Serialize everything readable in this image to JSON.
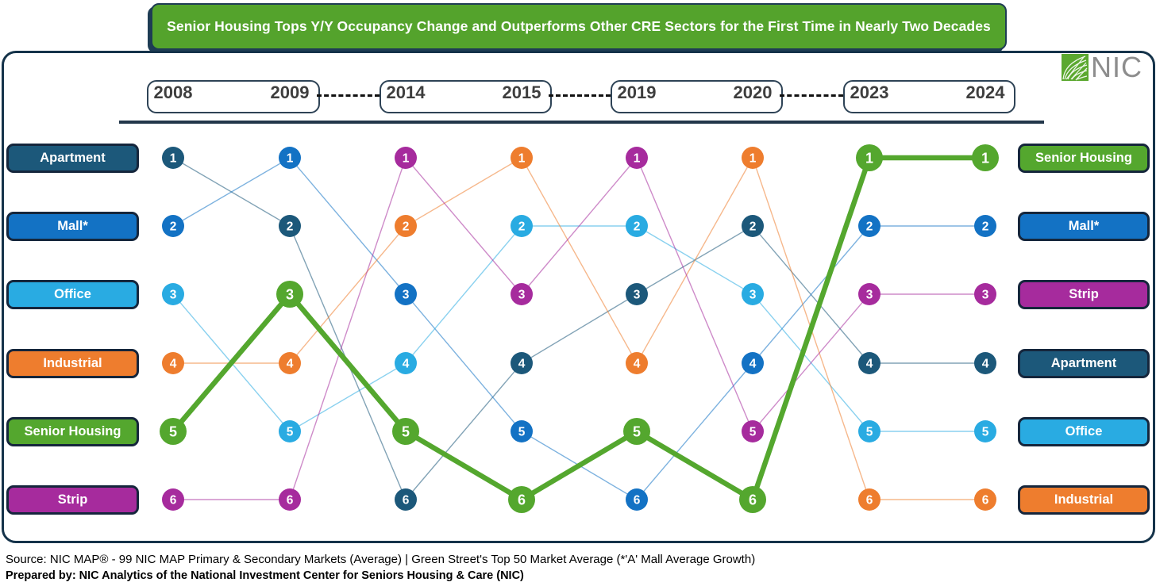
{
  "header": {
    "title": "Senior Housing Tops Y/Y Occupancy Change and Outperforms Other CRE Sectors for the First Time in Nearly Two Decades",
    "logo_text": "NIC"
  },
  "chart_data": {
    "type": "bump",
    "title": "Senior Housing Tops Y/Y Occupancy Change and Outperforms Other CRE Sectors for the First Time in Nearly Two Decades",
    "columns": [
      "2008",
      "2009",
      "2014",
      "2015",
      "2019",
      "2020",
      "2023",
      "2024"
    ],
    "column_pairs": [
      [
        "2008",
        "2009"
      ],
      [
        "2014",
        "2015"
      ],
      [
        "2019",
        "2020"
      ],
      [
        "2023",
        "2024"
      ]
    ],
    "rank_axis": {
      "min": 1,
      "max": 6,
      "direction": "1 = best Y/Y occupancy change"
    },
    "series": [
      {
        "name": "Apartment",
        "color": "#1C587A",
        "highlight": false,
        "ranks": [
          1,
          2,
          6,
          4,
          3,
          2,
          4,
          4
        ]
      },
      {
        "name": "Mall*",
        "color": "#1372C4",
        "highlight": false,
        "ranks": [
          2,
          1,
          3,
          5,
          6,
          4,
          2,
          2
        ]
      },
      {
        "name": "Office",
        "color": "#29ABE2",
        "highlight": false,
        "ranks": [
          3,
          5,
          4,
          2,
          2,
          3,
          5,
          5
        ]
      },
      {
        "name": "Industrial",
        "color": "#EE7D2E",
        "highlight": false,
        "ranks": [
          4,
          4,
          2,
          1,
          4,
          1,
          6,
          6
        ]
      },
      {
        "name": "Senior Housing",
        "color": "#54A72E",
        "highlight": true,
        "ranks": [
          5,
          3,
          5,
          6,
          5,
          6,
          1,
          1
        ]
      },
      {
        "name": "Strip",
        "color": "#A62B9D",
        "highlight": false,
        "ranks": [
          6,
          6,
          1,
          3,
          1,
          5,
          3,
          3
        ]
      }
    ],
    "left_axis_order": [
      "Apartment",
      "Mall*",
      "Office",
      "Industrial",
      "Senior Housing",
      "Strip"
    ],
    "right_axis_order": [
      "Senior Housing",
      "Mall*",
      "Strip",
      "Apartment",
      "Office",
      "Industrial"
    ],
    "legend_position": "sector labels on left (2008 order) and right (2024 order)",
    "grid": false
  },
  "colors": {
    "title_green": "#54A32C",
    "border_navy": "#15334A",
    "label_border_navy": "#15263C",
    "year_text": "#3E3E3E",
    "divider": "#22374A",
    "logo_gray": "#8D8D8D",
    "logo_green": "#5BA82F"
  },
  "footer": {
    "source_line": "Source: NIC MAP® -  99 NIC MAP Primary & Secondary Markets (Average) | Green Street's Top 50 Market Average (*'A' Mall Average Growth)",
    "prepared_line": "Prepared by: NIC Analytics of the National Investment Center for Seniors Housing & Care (NIC)"
  }
}
